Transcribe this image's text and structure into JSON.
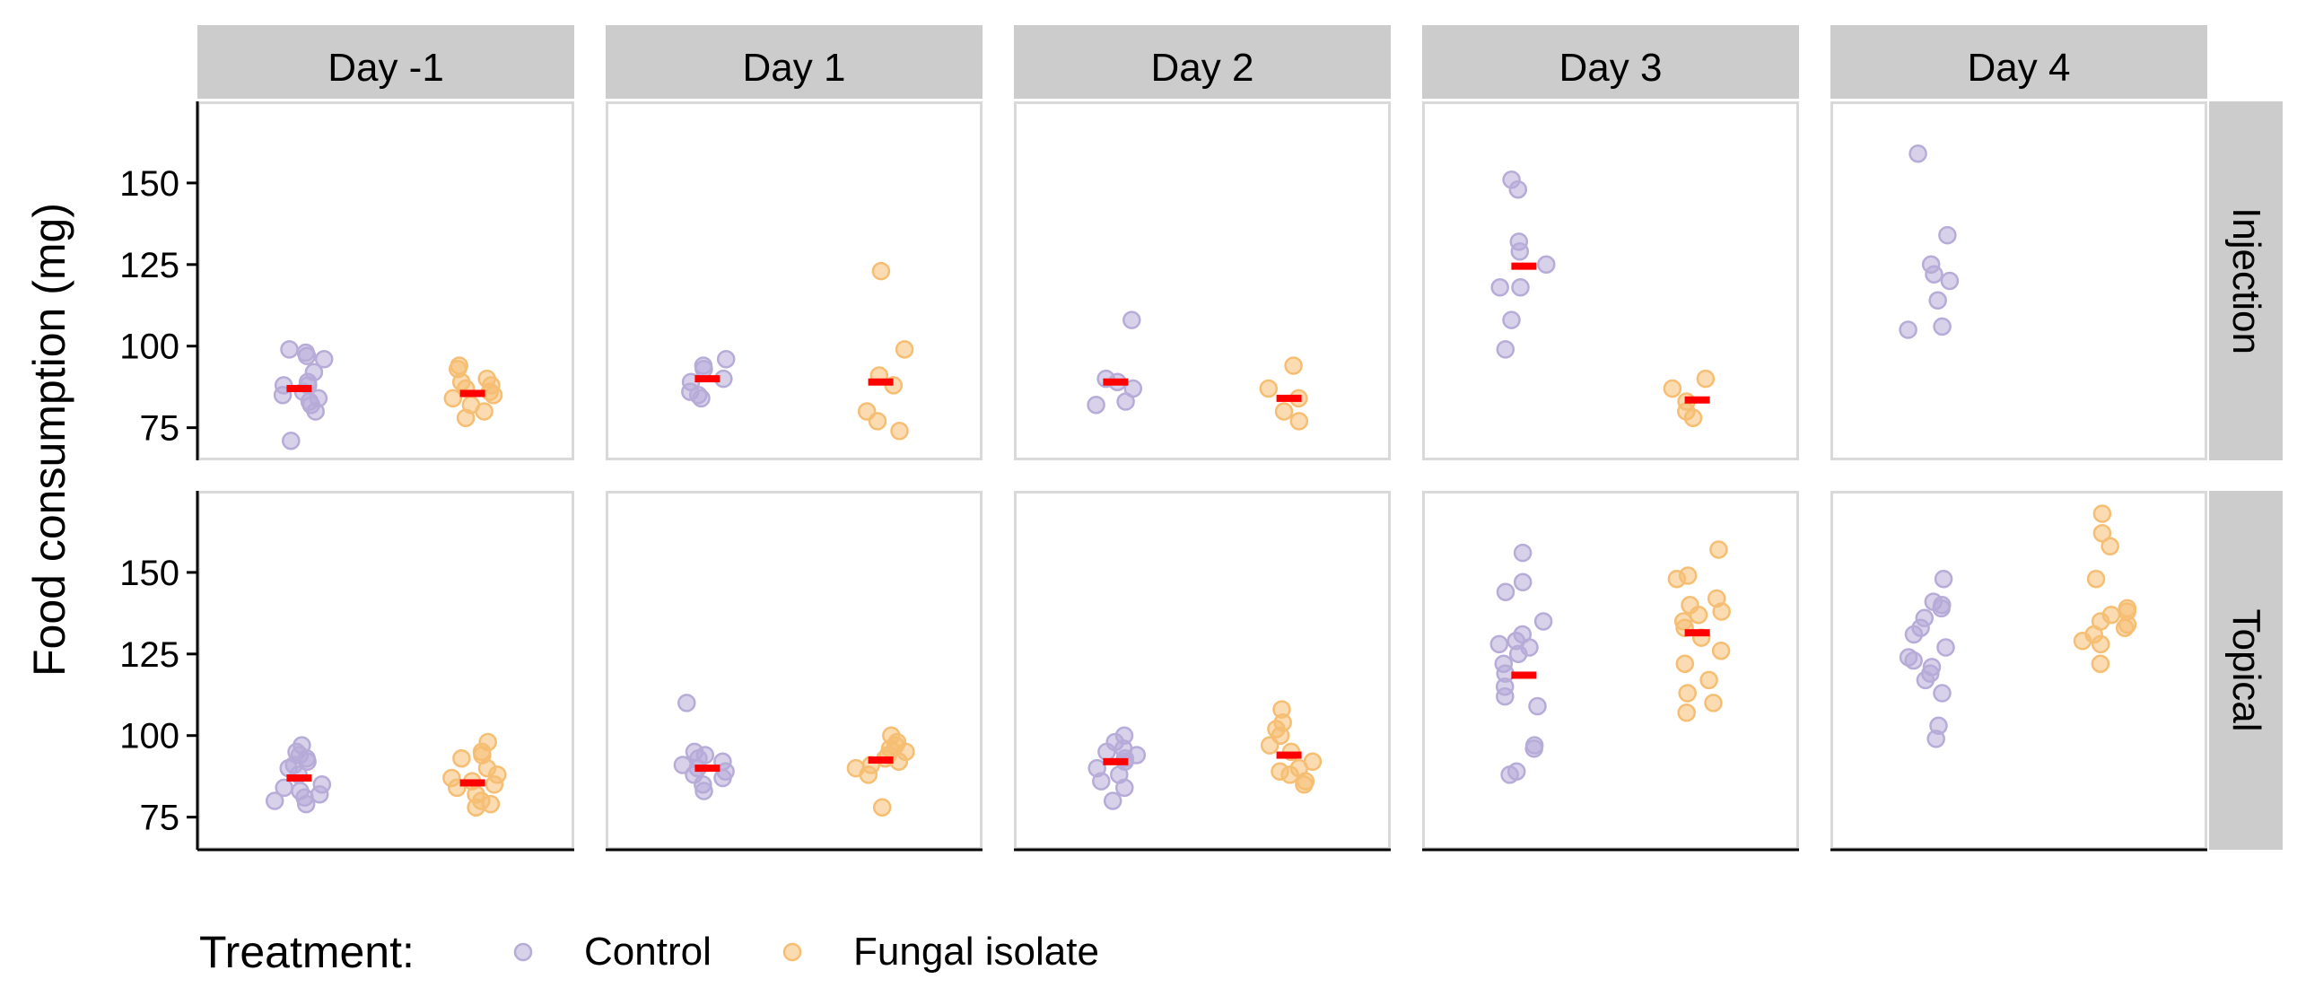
{
  "chart_data": {
    "type": "scatter",
    "description_ylabel": "",
    "ylabel": "Food consumption (mg)",
    "xlabel": "",
    "title": "",
    "ylim": [
      65,
      175
    ],
    "yticks": [
      75,
      100,
      125,
      150
    ],
    "columns": [
      "Day -1",
      "Day 1",
      "Day 2",
      "Day 3",
      "Day 4"
    ],
    "rows": [
      "Injection",
      "Topical"
    ],
    "legend": {
      "title": "Treatment:",
      "position": "bottom",
      "items": [
        {
          "name": "Control",
          "color": "#b7acd8"
        },
        {
          "name": "Fungal isolate",
          "color": "#f6be72"
        }
      ]
    },
    "mean_color": "#ff0000",
    "series": [
      {
        "name": "Control",
        "color": "#b7acd8"
      },
      {
        "name": "Fungal isolate",
        "color": "#f6be72"
      }
    ],
    "panels": [
      {
        "row": "Injection",
        "column": "Day -1",
        "Control": [
          97,
          99,
          98,
          96,
          88,
          89,
          85,
          84,
          83,
          80,
          82,
          71,
          92,
          88,
          86
        ],
        "Fungal isolate": [
          94,
          93,
          90,
          88,
          86,
          84,
          82,
          80,
          78,
          89,
          87,
          85
        ],
        "means": [
          87,
          85.5
        ]
      },
      {
        "row": "Injection",
        "column": "Day 1",
        "Control": [
          96,
          94,
          93,
          90,
          89,
          86,
          85,
          84
        ],
        "Fungal isolate": [
          123,
          99,
          91,
          88,
          80,
          77,
          74
        ],
        "means": [
          90,
          89
        ]
      },
      {
        "row": "Injection",
        "column": "Day 2",
        "Control": [
          108,
          90,
          89,
          87,
          83,
          82
        ],
        "Fungal isolate": [
          94,
          87,
          84,
          80,
          77
        ],
        "means": [
          89,
          84
        ]
      },
      {
        "row": "Injection",
        "column": "Day 3",
        "Control": [
          151,
          148,
          132,
          129,
          125,
          118,
          118,
          108,
          99
        ],
        "Fungal isolate": [
          90,
          87,
          83,
          80,
          78
        ],
        "means": [
          124.5,
          83.5
        ]
      },
      {
        "row": "Injection",
        "column": "Day 4",
        "Control": [
          159,
          134,
          125,
          122,
          120,
          114,
          106,
          105
        ],
        "Fungal isolate": [],
        "means": [
          null,
          null
        ]
      },
      {
        "row": "Topical",
        "column": "Day -1",
        "Control": [
          97,
          95,
          94,
          92,
          90,
          88,
          85,
          84,
          83,
          82,
          81,
          80,
          79,
          93,
          91
        ],
        "Fungal isolate": [
          98,
          95,
          93,
          90,
          88,
          86,
          84,
          82,
          80,
          79,
          78,
          94,
          87,
          85
        ],
        "means": [
          87,
          85.5
        ]
      },
      {
        "row": "Topical",
        "column": "Day 1",
        "Control": [
          110,
          95,
          94,
          92,
          90,
          89,
          88,
          87,
          85,
          83,
          91,
          93
        ],
        "Fungal isolate": [
          100,
          98,
          97,
          95,
          93,
          92,
          91,
          90,
          88,
          78,
          94,
          96
        ],
        "means": [
          90,
          92.5
        ]
      },
      {
        "row": "Topical",
        "column": "Day 2",
        "Control": [
          100,
          98,
          96,
          94,
          92,
          90,
          88,
          86,
          84,
          80,
          95,
          93
        ],
        "Fungal isolate": [
          108,
          104,
          102,
          100,
          97,
          95,
          92,
          90,
          88,
          86,
          85,
          89
        ],
        "means": [
          92,
          94
        ]
      },
      {
        "row": "Topical",
        "column": "Day 3",
        "Control": [
          156,
          147,
          144,
          135,
          129,
          128,
          127,
          125,
          122,
          119,
          115,
          112,
          109,
          97,
          96,
          89,
          88,
          131
        ],
        "Fungal isolate": [
          157,
          149,
          148,
          142,
          140,
          138,
          135,
          133,
          130,
          126,
          122,
          117,
          113,
          110,
          107,
          137
        ],
        "means": [
          118.5,
          131.5
        ]
      },
      {
        "row": "Topical",
        "column": "Day 4",
        "Control": [
          148,
          141,
          140,
          139,
          133,
          131,
          127,
          124,
          123,
          121,
          119,
          117,
          113,
          103,
          99,
          136
        ],
        "Fungal isolate": [
          168,
          162,
          158,
          148,
          139,
          138,
          137,
          135,
          133,
          131,
          129,
          128,
          122,
          134
        ],
        "means": [
          null,
          null
        ]
      }
    ]
  }
}
